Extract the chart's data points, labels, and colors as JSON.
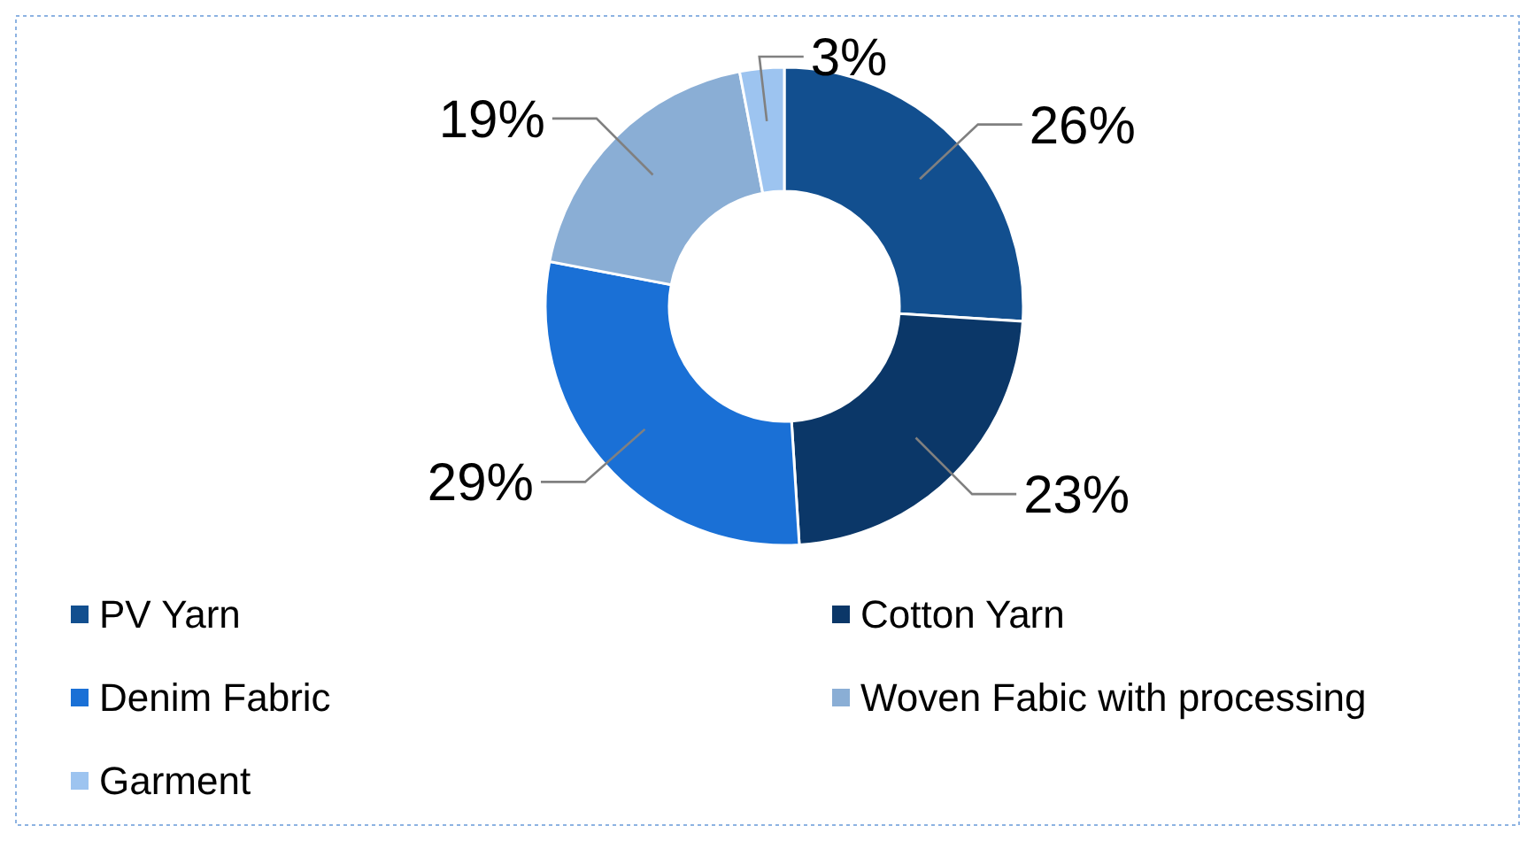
{
  "chart_data": {
    "type": "donut",
    "categories": [
      "PV Yarn",
      "Cotton Yarn",
      "Denim Fabric",
      "Woven Fabic with processing",
      "Garment"
    ],
    "values": [
      26,
      23,
      29,
      19,
      3
    ],
    "colors": [
      "#124f8f",
      "#0b3768",
      "#1a70d6",
      "#8aaed5",
      "#9dc4f0"
    ],
    "value_labels": [
      "26%",
      "23%",
      "29%",
      "19%",
      "3%"
    ],
    "legend": "bottom"
  }
}
